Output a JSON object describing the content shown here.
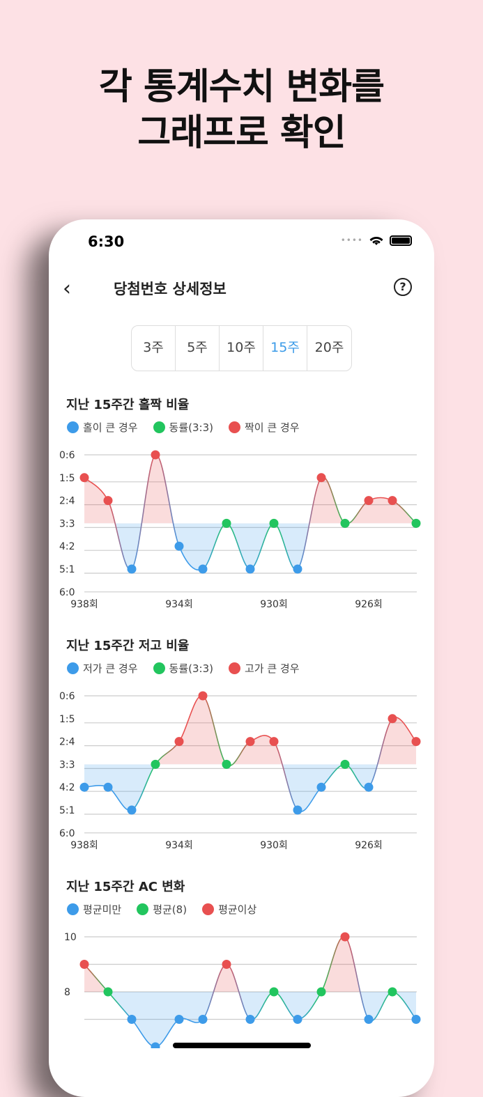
{
  "headline": [
    "각 통계수치 변화를",
    "그래프로 확인"
  ],
  "status": {
    "time": "6:30"
  },
  "nav": {
    "title": "당첨번호 상세정보",
    "back_icon": "chevron-left-icon",
    "help_icon": "question-circle-icon"
  },
  "weeks": {
    "options": [
      "3주",
      "5주",
      "10주",
      "15주",
      "20주"
    ],
    "selected": "15주"
  },
  "colors": {
    "blue": "#3d9be9",
    "green": "#22c55e",
    "red": "#e85050",
    "accent": "#3b9be8"
  },
  "chart_data": [
    {
      "type": "line",
      "title": "지난 15주간 홀짝 비율",
      "legend": [
        "홀이 큰 경우",
        "동률(3:3)",
        "짝이 큰 경우"
      ],
      "y_ticks": [
        "0:6",
        "1:5",
        "2:4",
        "3:3",
        "4:2",
        "5:1",
        "6:0"
      ],
      "x_ticks": [
        "938회",
        "934회",
        "930회",
        "926회"
      ],
      "x": [
        938,
        937,
        936,
        935,
        934,
        933,
        932,
        931,
        930,
        929,
        928,
        927,
        926,
        925,
        924
      ],
      "values": [
        "1:5",
        "2:4",
        "5:1",
        "0:6",
        "4:2",
        "5:1",
        "3:3",
        "5:1",
        "3:3",
        "5:1",
        "1:5",
        "3:3",
        "2:4",
        "2:4",
        "3:3"
      ],
      "baseline": "3:3"
    },
    {
      "type": "line",
      "title": "지난 15주간 저고 비율",
      "legend": [
        "저가 큰 경우",
        "동률(3:3)",
        "고가 큰 경우"
      ],
      "y_ticks": [
        "0:6",
        "1:5",
        "2:4",
        "3:3",
        "4:2",
        "5:1",
        "6:0"
      ],
      "x_ticks": [
        "938회",
        "934회",
        "930회",
        "926회"
      ],
      "x": [
        938,
        937,
        936,
        935,
        934,
        933,
        932,
        931,
        930,
        929,
        928,
        927,
        926,
        925,
        924
      ],
      "values": [
        "4:2",
        "4:2",
        "5:1",
        "3:3",
        "2:4",
        "0:6",
        "3:3",
        "2:4",
        "2:4",
        "5:1",
        "4:2",
        "3:3",
        "4:2",
        "1:5",
        "2:4"
      ],
      "baseline": "3:3"
    },
    {
      "type": "line",
      "title": "지난 15주간 AC 변화",
      "legend": [
        "평균미만",
        "평균(8)",
        "평균이상"
      ],
      "y_ticks": [
        "10",
        "8"
      ],
      "x": [
        938,
        937,
        936,
        935,
        934,
        933,
        932,
        931,
        930,
        929,
        928,
        927,
        926,
        925,
        924
      ],
      "values": [
        9,
        8,
        7,
        6,
        7,
        7,
        9,
        7,
        8,
        7,
        8,
        10,
        7,
        8,
        7
      ],
      "baseline": 8
    }
  ]
}
